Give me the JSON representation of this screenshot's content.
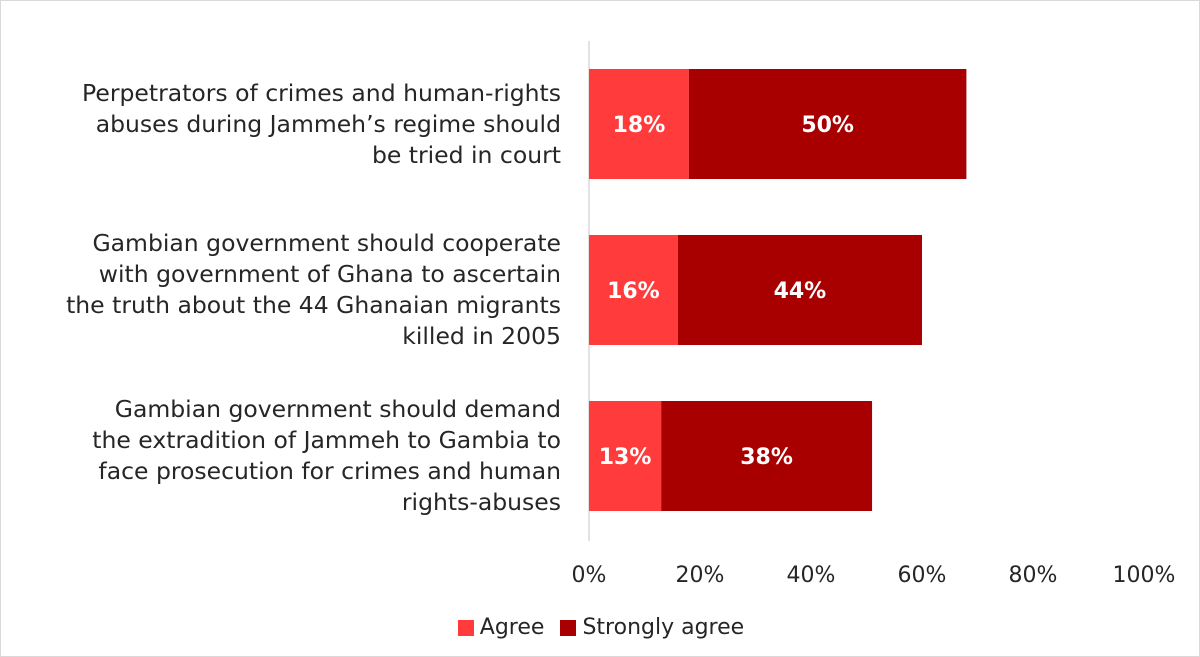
{
  "chart_data": {
    "type": "bar",
    "orientation": "horizontal",
    "stacked": true,
    "title": "",
    "xlabel": "",
    "ylabel": "",
    "xlim": [
      0,
      100
    ],
    "x_ticks": [
      "0%",
      "20%",
      "40%",
      "60%",
      "80%",
      "100%"
    ],
    "grid": false,
    "legend_position": "bottom",
    "categories": [
      [
        "Perpetrators of crimes and human-rights",
        "abuses during Jammeh’s regime should",
        "be tried in court"
      ],
      [
        "Gambian government should cooperate",
        "with government of Ghana to ascertain",
        "the truth about the 44 Ghanaian migrants",
        "killed in 2005"
      ],
      [
        "Gambian government should demand",
        "the extradition of Jammeh to Gambia to",
        "face prosecution for crimes and human",
        "rights-abuses"
      ]
    ],
    "series": [
      {
        "name": "Agree",
        "color": "#ff3b3b",
        "values": [
          18,
          16,
          13
        ],
        "labels": [
          "18%",
          "16%",
          "13%"
        ]
      },
      {
        "name": "Strongly agree",
        "color": "#a80000",
        "values": [
          50,
          44,
          38
        ],
        "labels": [
          "50%",
          "44%",
          "38%"
        ]
      }
    ]
  }
}
